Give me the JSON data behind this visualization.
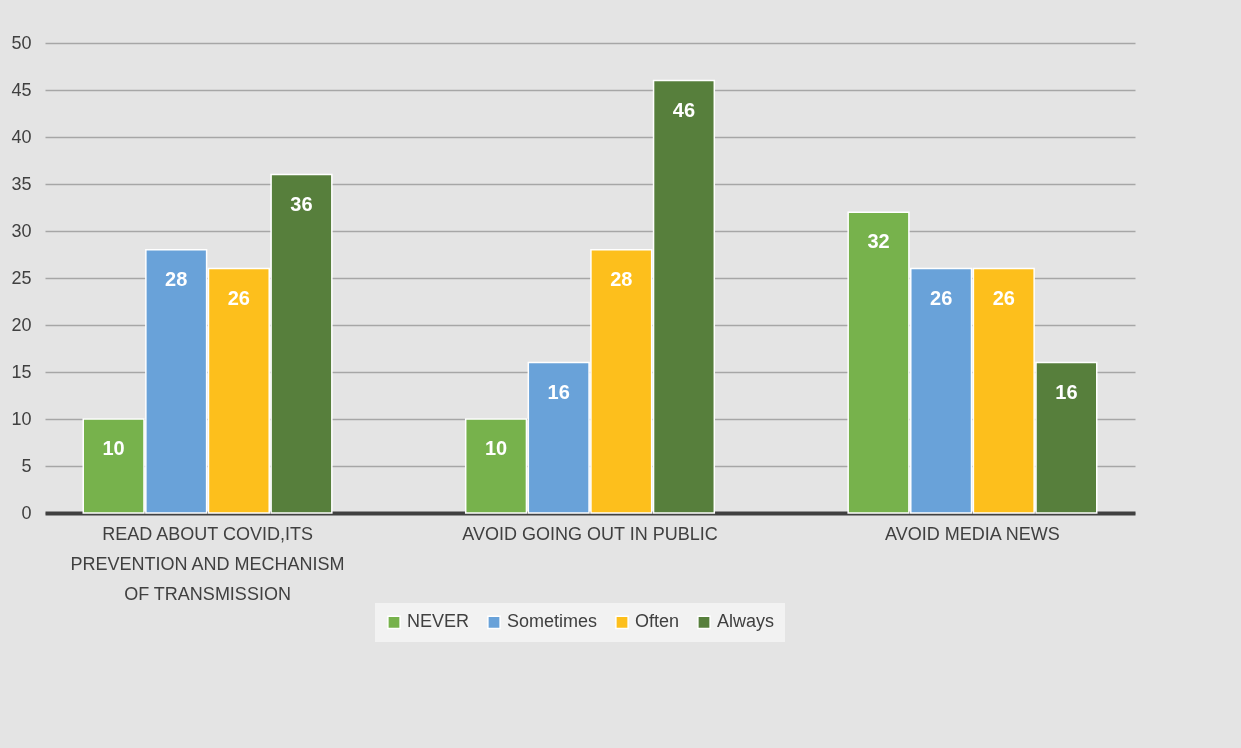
{
  "chart_data": {
    "type": "bar",
    "categories": [
      "READ ABOUT COVID,ITS PREVENTION AND MECHANISM OF TRANSMISSION",
      "AVOID GOING OUT IN PUBLIC",
      "AVOID MEDIA NEWS"
    ],
    "series": [
      {
        "name": "NEVER",
        "color": "#77b24c",
        "values": [
          10,
          10,
          32
        ]
      },
      {
        "name": "Sometimes",
        "color": "#69a2d9",
        "values": [
          28,
          16,
          26
        ]
      },
      {
        "name": "Often",
        "color": "#fdbf1c",
        "values": [
          26,
          28,
          26
        ]
      },
      {
        "name": "Always",
        "color": "#577f3c",
        "values": [
          36,
          46,
          16
        ]
      }
    ],
    "ylim": [
      0,
      50
    ],
    "yticks": [
      0,
      5,
      10,
      15,
      20,
      25,
      30,
      35,
      40,
      45,
      50
    ],
    "grid": "y",
    "legend": "bottom",
    "data_labels": true
  }
}
